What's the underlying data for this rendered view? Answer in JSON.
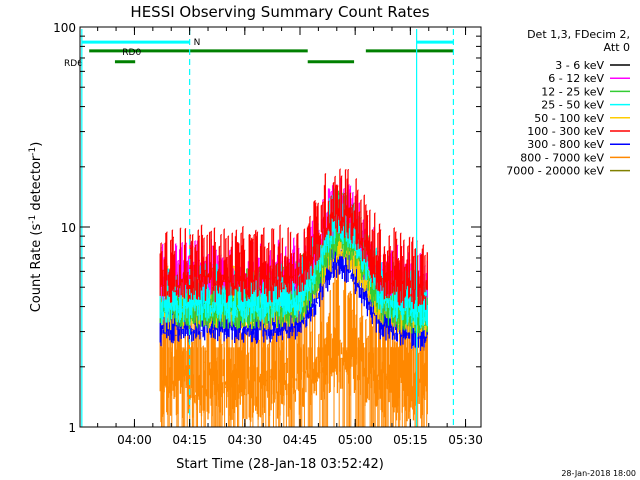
{
  "chart_data": {
    "type": "line",
    "title": "HESSI Observing Summary Count Rates",
    "xlabel": "Start Time (28-Jan-18 03:52:42)",
    "ylabel": "Count Rate (s⁻¹ detector⁻¹)",
    "ylabel_main": "Count Rate (s",
    "ylabel_mid": " detector",
    "ylabel_end": ")",
    "ylabel_exp": "-1",
    "yscale": "log",
    "ylim": [
      1,
      100
    ],
    "xlim_minutes": [
      -7.5,
      101.5
    ],
    "x_reference_time": "03:52:42",
    "x_ticks": [
      {
        "label": "04:00",
        "min": 7.3
      },
      {
        "label": "04:15",
        "min": 22.3
      },
      {
        "label": "04:30",
        "min": 37.3
      },
      {
        "label": "04:45",
        "min": 52.3
      },
      {
        "label": "05:00",
        "min": 67.3
      },
      {
        "label": "05:15",
        "min": 82.3
      },
      {
        "label": "05:30",
        "min": 97.3
      }
    ],
    "y_ticks": [
      {
        "label": "1",
        "value": 1
      },
      {
        "label": "10",
        "value": 10
      },
      {
        "label": "100",
        "value": 100
      }
    ],
    "legend_header": [
      "Det 1,3, FDecim 2,",
      "Att 0"
    ],
    "legend_position": "top-right, outside plot",
    "series": [
      {
        "name": "3 - 6 keV",
        "color": "#000000",
        "profile": null
      },
      {
        "name": "6 - 12 keV",
        "color": "#ff00ff",
        "profile": [
          [
            14,
            6.2
          ],
          [
            25,
            6.6
          ],
          [
            40,
            6.4
          ],
          [
            52,
            6.8
          ],
          [
            56,
            8.5
          ],
          [
            60,
            12.4
          ],
          [
            62,
            13.8
          ],
          [
            66,
            12.8
          ],
          [
            70,
            9.2
          ],
          [
            74,
            6.8
          ],
          [
            80,
            6.2
          ],
          [
            86,
            5.8
          ]
        ]
      },
      {
        "name": "12 - 25 keV",
        "color": "#33cc33",
        "profile": [
          [
            14,
            4.7
          ],
          [
            25,
            4.9
          ],
          [
            40,
            4.8
          ],
          [
            52,
            5.0
          ],
          [
            56,
            6.5
          ],
          [
            60,
            9.8
          ],
          [
            62,
            11.2
          ],
          [
            66,
            10.3
          ],
          [
            70,
            7.4
          ],
          [
            74,
            5.2
          ],
          [
            80,
            4.7
          ],
          [
            86,
            4.4
          ]
        ]
      },
      {
        "name": "25 - 50 keV",
        "color": "#00ffff",
        "profile": [
          [
            14,
            4.7
          ],
          [
            25,
            5.0
          ],
          [
            40,
            4.8
          ],
          [
            52,
            5.2
          ],
          [
            56,
            7.0
          ],
          [
            60,
            10.8
          ],
          [
            62,
            12.2
          ],
          [
            66,
            11.2
          ],
          [
            70,
            8.0
          ],
          [
            74,
            5.4
          ],
          [
            80,
            4.8
          ],
          [
            86,
            4.5
          ]
        ]
      },
      {
        "name": "50 - 100 keV",
        "color": "#ffcc00",
        "profile": [
          [
            14,
            4.6
          ],
          [
            25,
            4.8
          ],
          [
            40,
            4.7
          ],
          [
            52,
            5.0
          ],
          [
            56,
            6.2
          ],
          [
            60,
            8.8
          ],
          [
            62,
            10.2
          ],
          [
            66,
            9.4
          ],
          [
            70,
            6.8
          ],
          [
            74,
            5.0
          ],
          [
            80,
            4.6
          ],
          [
            86,
            4.3
          ]
        ]
      },
      {
        "name": "100 - 300 keV",
        "color": "#ff0000",
        "profile": [
          [
            14,
            6.8
          ],
          [
            25,
            7.1
          ],
          [
            40,
            6.9
          ],
          [
            52,
            7.2
          ],
          [
            56,
            9.5
          ],
          [
            60,
            14.0
          ],
          [
            62,
            15.6
          ],
          [
            66,
            14.2
          ],
          [
            70,
            10.0
          ],
          [
            74,
            7.3
          ],
          [
            80,
            6.6
          ],
          [
            86,
            6.2
          ]
        ]
      },
      {
        "name": "300 - 800 keV",
        "color": "#0000ff",
        "profile": [
          [
            14,
            3.7
          ],
          [
            25,
            3.9
          ],
          [
            40,
            3.8
          ],
          [
            52,
            4.0
          ],
          [
            56,
            5.0
          ],
          [
            60,
            7.0
          ],
          [
            62,
            8.0
          ],
          [
            66,
            7.4
          ],
          [
            70,
            5.4
          ],
          [
            74,
            4.0
          ],
          [
            80,
            3.7
          ],
          [
            86,
            3.5
          ]
        ]
      },
      {
        "name": "800 - 7000 keV",
        "color": "#ff8800",
        "profile": [
          [
            14,
            2.6
          ],
          [
            25,
            2.7
          ],
          [
            40,
            2.6
          ],
          [
            52,
            2.8
          ],
          [
            56,
            3.1
          ],
          [
            60,
            3.4
          ],
          [
            62,
            3.6
          ],
          [
            66,
            3.4
          ],
          [
            70,
            3.1
          ],
          [
            74,
            2.8
          ],
          [
            80,
            2.6
          ],
          [
            86,
            2.5
          ]
        ]
      },
      {
        "name": "7000 - 20000 keV",
        "color": "#808000",
        "profile": null
      }
    ],
    "data_span_minutes": [
      14.3,
      87.0
    ],
    "saa_or_flag_lines": [
      {
        "label": "N",
        "color": "#00ffff",
        "level": 84,
        "segments": [
          [
            -7,
            22.3
          ],
          [
            84.0,
            94.0
          ]
        ]
      },
      {
        "label": "RD0",
        "color": "#008000",
        "level": 76,
        "segments": [
          [
            -5,
            54.4
          ],
          [
            70.2,
            94.0
          ]
        ]
      },
      {
        "label": "RD6",
        "color": "#008000",
        "level": 67,
        "segments": [
          [
            2,
            7.5
          ],
          [
            54.4,
            67.0
          ]
        ]
      }
    ],
    "vertical_markers": [
      {
        "min": -7.0,
        "color": "#00ffff",
        "style": "solid"
      },
      {
        "min": 22.3,
        "color": "#00ffff",
        "style": "dashed"
      },
      {
        "min": 84.0,
        "color": "#00ffff",
        "style": "solid"
      },
      {
        "min": 94.0,
        "color": "#00ffff",
        "style": "dashed"
      }
    ],
    "footer_stamp": "28-Jan-2018 18:00"
  }
}
